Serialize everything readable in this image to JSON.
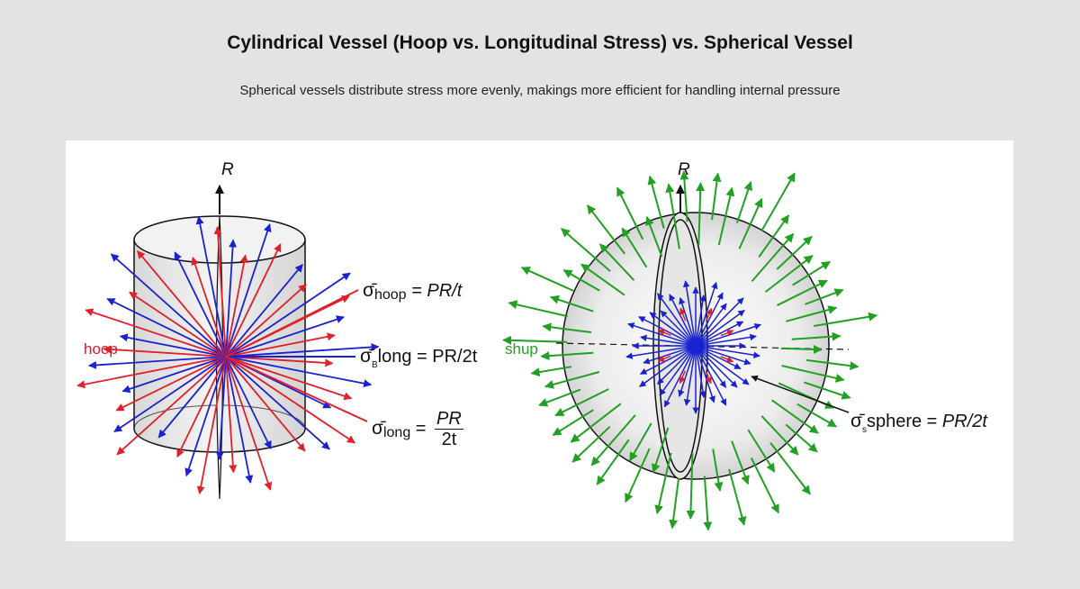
{
  "header": {
    "title": "Cylindrical Vessel (Hoop vs. Longitudinal Stress) vs. Spherical Vessel",
    "subtitle": "Spherical vessels distribute stress more evenly, makings more efficient for handling internal pressure"
  },
  "colors": {
    "background": "#e3e3e3",
    "panel": "#ffffff",
    "hoop_red": "#e0202a",
    "long_blue": "#1a22d0",
    "sphere_green": "#22a022",
    "outline": "#111111"
  },
  "cylinder": {
    "axis_label": "R",
    "side_label": "hoop",
    "equations": {
      "hoop": {
        "symbol": "σ̄",
        "sub": "hoop",
        "rhs": "= PR/t"
      },
      "long_inline": {
        "symbol": "σ̄",
        "sub": "B",
        "text": "long = PR/2t"
      },
      "long_fraction": {
        "symbol": "σ̄",
        "sub": "long",
        "eq": "=",
        "num": "PR",
        "den": "2t"
      }
    }
  },
  "sphere": {
    "axis_label": "R",
    "side_label": "shup",
    "equation": {
      "symbol": "σ̄",
      "sub": "s",
      "text": "sphere = ",
      "rhs": "PR/2t"
    }
  }
}
